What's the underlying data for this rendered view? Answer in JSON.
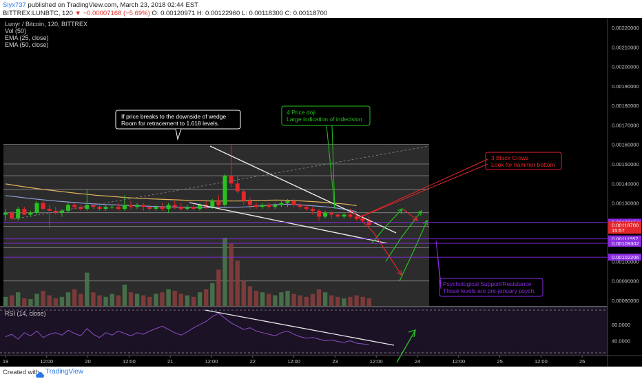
{
  "header": {
    "author": "Slyx737",
    "published_text": "published on TradingView.com, March 23, 2018 02:44 EST",
    "symbol_line": "BITTREX:LUNBTC, 120",
    "arrow": "▼",
    "change": "−0.00007168 (−5.69%)",
    "ohlc": "O: 0.00120971 H: 0.00122960 L: 0.00118300 C: 0.00118700"
  },
  "legend": {
    "title": "Lunyr / Bitcoin, 120, BITTREX",
    "vol": "Vol (50)",
    "ema1": "EMA (25, close)",
    "ema2": "EMA (50, close)",
    "rsi": "RSI (14, close)"
  },
  "footer": {
    "created": "Created with",
    "brand": "TradingView"
  },
  "colors": {
    "up": "#27c21e",
    "down": "#e3262b",
    "ema25": "#8e9dd8",
    "ema50": "#e3b35c",
    "rsi": "#8a4fc7",
    "support": "#8a2be2",
    "vol_up": "#4b7a4f",
    "vol_down": "#8b3d3d"
  },
  "annotations": {
    "wedge_note": [
      "If price breaks to the downside of wedge",
      "Room for retracement to 1.618 levels."
    ],
    "doji_note": [
      "4 Price doji",
      "Large indication of indecision"
    ],
    "crows_note": [
      "3 Black Crows",
      "Look for hammer bottom"
    ],
    "psych_note": [
      "Psychological Support/Resistance",
      "These levels are pre-january psych."
    ]
  },
  "chart_data": {
    "type": "candlestick",
    "x_tick_labels": [
      "19",
      "12:00",
      "20",
      "12:00",
      "21",
      "12:00",
      "22",
      "12:00",
      "23",
      "12:00",
      "24",
      "12:00",
      "25",
      "12:00",
      "26"
    ],
    "price_axis": {
      "tick_labels": [
        "0.00220000",
        "0.00210000",
        "0.00200000",
        "0.00190000",
        "0.00180000",
        "0.00170000",
        "0.00160000",
        "0.00150000",
        "0.00140000",
        "0.00130000",
        "0.00100000",
        "0.00090000",
        "0.00080000"
      ],
      "range": [
        0.00076,
        0.00228
      ]
    },
    "price_labels": [
      {
        "text": "0.00120154",
        "value": 0.00120154,
        "color": "#8a2be2"
      },
      {
        "text": "0.00118700",
        "value": 0.001187,
        "color": "#e3262b"
      },
      {
        "text": "15:57",
        "value": 0.00116,
        "color": "#e3262b"
      },
      {
        "text": "0.00111557",
        "value": 0.00111557,
        "color": "#8a2be2"
      },
      {
        "text": "0.00109302",
        "value": 0.00109302,
        "color": "#8a2be2"
      },
      {
        "text": "0.00102206",
        "value": 0.00102206,
        "color": "#8a2be2"
      }
    ],
    "horizontal_levels": [
      0.0016,
      0.0015,
      0.00144,
      0.00137,
      0.00125,
      0.00118,
      0.00107,
      0.0009
    ],
    "support_levels": [
      0.00120154,
      0.00111557,
      0.00109302,
      0.00102206
    ],
    "rsi_axis": {
      "tick_labels": [
        "60.0000",
        "40.0000"
      ],
      "range": [
        25,
        78
      ]
    },
    "candles": [
      [
        0.00124,
        0.00127,
        0.00121,
        0.00125
      ],
      [
        0.00125,
        0.00126,
        0.00121,
        0.00122
      ],
      [
        0.00122,
        0.00128,
        0.00121,
        0.00127
      ],
      [
        0.00127,
        0.00128,
        0.00124,
        0.00124
      ],
      [
        0.00124,
        0.00126,
        0.00123,
        0.00125
      ],
      [
        0.00125,
        0.00131,
        0.00124,
        0.0013
      ],
      [
        0.0013,
        0.00132,
        0.00126,
        0.00127
      ],
      [
        0.00127,
        0.00129,
        0.00117,
        0.00126
      ],
      [
        0.00126,
        0.00128,
        0.00124,
        0.00125
      ],
      [
        0.00125,
        0.00127,
        0.00123,
        0.00126
      ],
      [
        0.00126,
        0.0013,
        0.00125,
        0.00129
      ],
      [
        0.00129,
        0.0013,
        0.00127,
        0.00128
      ],
      [
        0.00128,
        0.00129,
        0.00126,
        0.00127
      ],
      [
        0.00127,
        0.00137,
        0.00126,
        0.00129
      ],
      [
        0.00129,
        0.0013,
        0.00127,
        0.00128
      ],
      [
        0.00128,
        0.0013,
        0.00126,
        0.00127
      ],
      [
        0.00127,
        0.00129,
        0.00126,
        0.00128
      ],
      [
        0.00128,
        0.00129,
        0.00127,
        0.00128
      ],
      [
        0.00128,
        0.0013,
        0.00126,
        0.00127
      ],
      [
        0.00127,
        0.00134,
        0.00126,
        0.00129
      ],
      [
        0.00129,
        0.00131,
        0.00127,
        0.00128
      ],
      [
        0.00128,
        0.0013,
        0.00127,
        0.00129
      ],
      [
        0.00129,
        0.0013,
        0.00126,
        0.00128
      ],
      [
        0.00128,
        0.00129,
        0.00126,
        0.00127
      ],
      [
        0.00127,
        0.00129,
        0.00126,
        0.00128
      ],
      [
        0.00128,
        0.0013,
        0.00126,
        0.00127
      ],
      [
        0.00127,
        0.0013,
        0.00125,
        0.00129
      ],
      [
        0.00129,
        0.00131,
        0.00127,
        0.00128
      ],
      [
        0.00128,
        0.0013,
        0.00126,
        0.00127
      ],
      [
        0.00127,
        0.00129,
        0.00126,
        0.00128
      ],
      [
        0.00128,
        0.0013,
        0.00126,
        0.00127
      ],
      [
        0.00127,
        0.0013,
        0.00126,
        0.00129
      ],
      [
        0.00129,
        0.00131,
        0.00127,
        0.00128
      ],
      [
        0.00128,
        0.00132,
        0.00127,
        0.00131
      ],
      [
        0.00131,
        0.00134,
        0.00127,
        0.00129
      ],
      [
        0.00129,
        0.00145,
        0.00128,
        0.00144
      ],
      [
        0.00144,
        0.0016,
        0.00138,
        0.0014
      ],
      [
        0.0014,
        0.00144,
        0.00135,
        0.00136
      ],
      [
        0.00136,
        0.00137,
        0.00129,
        0.00131
      ],
      [
        0.00131,
        0.00133,
        0.00127,
        0.00129
      ],
      [
        0.00129,
        0.0013,
        0.00127,
        0.00128
      ],
      [
        0.00128,
        0.0013,
        0.00127,
        0.00129
      ],
      [
        0.00129,
        0.0013,
        0.00127,
        0.00128
      ],
      [
        0.00128,
        0.0013,
        0.00127,
        0.00129
      ],
      [
        0.00129,
        0.00131,
        0.00128,
        0.0013
      ],
      [
        0.0013,
        0.00132,
        0.00128,
        0.00131
      ],
      [
        0.00131,
        0.00132,
        0.00128,
        0.00129
      ],
      [
        0.00129,
        0.0013,
        0.00127,
        0.00128
      ],
      [
        0.00128,
        0.00129,
        0.00126,
        0.00127
      ],
      [
        0.00127,
        0.00128,
        0.00124,
        0.00126
      ],
      [
        0.00126,
        0.00127,
        0.00121,
        0.00123
      ],
      [
        0.00123,
        0.00126,
        0.00122,
        0.00125
      ],
      [
        0.00125,
        0.00126,
        0.00122,
        0.00124
      ],
      [
        0.00124,
        0.00125,
        0.00122,
        0.00123
      ],
      [
        0.00123,
        0.00125,
        0.00122,
        0.00124
      ],
      [
        0.00124,
        0.00126,
        0.00122,
        0.00123
      ],
      [
        0.00123,
        0.00124,
        0.00121,
        0.00122
      ],
      [
        0.00122,
        0.00124,
        0.0012,
        0.00121
      ],
      [
        0.00121,
        0.00123,
        0.00118,
        0.001187
      ]
    ],
    "volume": [
      12,
      14,
      18,
      10,
      9,
      16,
      20,
      14,
      10,
      12,
      18,
      22,
      16,
      44,
      18,
      14,
      12,
      16,
      14,
      28,
      18,
      16,
      14,
      12,
      16,
      18,
      22,
      20,
      16,
      14,
      12,
      18,
      22,
      30,
      48,
      90,
      82,
      60,
      34,
      26,
      20,
      18,
      16,
      14,
      18,
      20,
      16,
      14,
      12,
      16,
      22,
      18,
      14,
      12,
      10,
      12,
      14,
      12,
      10
    ],
    "volume_range": [
      0,
      100
    ],
    "ema25": [
      0.001338,
      0.001332,
      0.001326,
      0.00132,
      0.001315,
      0.00131,
      0.001306,
      0.001302,
      0.001298,
      0.001295,
      0.001292,
      0.00129,
      0.001288,
      0.001286,
      0.001284,
      0.001282,
      0.00128,
      0.001279,
      0.001278,
      0.001277,
      0.001277,
      0.001277,
      0.001277,
      0.001278,
      0.00128,
      0.001284,
      0.001288,
      0.001292,
      0.001294,
      0.001292,
      0.001288,
      0.001284,
      0.00128,
      0.001274,
      0.001266,
      0.001256
    ],
    "ema50": [
      0.001398,
      0.00139,
      0.001382,
      0.001375,
      0.001368,
      0.001362,
      0.001356,
      0.00135,
      0.001345,
      0.00134,
      0.001336,
      0.001332,
      0.001328,
      0.001325,
      0.001322,
      0.00132,
      0.001318,
      0.001316,
      0.001314,
      0.001312,
      0.001311,
      0.00131,
      0.00131,
      0.00131,
      0.001311,
      0.001313,
      0.001314,
      0.001315,
      0.001314,
      0.001312,
      0.001309,
      0.001306,
      0.001302,
      0.001298,
      0.001294,
      0.001286
    ],
    "rsi": [
      45,
      48,
      42,
      50,
      46,
      52,
      44,
      48,
      50,
      47,
      53,
      49,
      46,
      55,
      48,
      44,
      50,
      47,
      52,
      49,
      46,
      50,
      48,
      52,
      55,
      58,
      54,
      50,
      47,
      51,
      56,
      60,
      64,
      70,
      74,
      68,
      62,
      58,
      54,
      56,
      52,
      50,
      48,
      46,
      50,
      52,
      48,
      45,
      43,
      44,
      42,
      40,
      41,
      39,
      38,
      40,
      37,
      36,
      35
    ],
    "projection_arrows": [
      {
        "color": "#27c21e",
        "points": [
          [
            0.001095,
            0
          ],
          [
            0.00118,
            1
          ],
          [
            0.00127,
            2
          ]
        ]
      },
      {
        "color": "#27c21e",
        "points": [
          [
            0.001,
            0
          ],
          [
            0.00112,
            1
          ],
          [
            0.00126,
            2
          ]
        ]
      },
      {
        "color": "#27c21e",
        "points": [
          [
            0.0009,
            0
          ],
          [
            0.00105,
            1
          ],
          [
            0.00121,
            2
          ]
        ]
      },
      {
        "color": "#e3262b",
        "points": [
          [
            0.00127,
            0
          ],
          [
            0.00115,
            1
          ],
          [
            0.00093,
            2
          ]
        ]
      },
      {
        "color": "#e3262b",
        "points": [
          [
            0.00127,
            0
          ],
          [
            0.00121,
            1
          ]
        ]
      }
    ]
  }
}
